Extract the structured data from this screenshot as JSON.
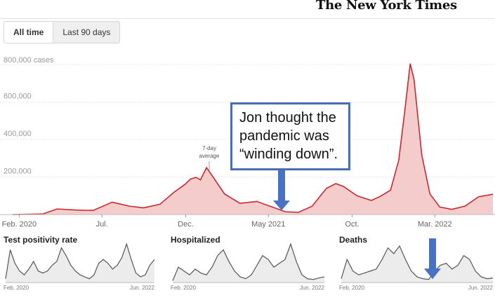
{
  "masthead": "The New York Times",
  "tabs": [
    {
      "label": "All time",
      "active": true
    },
    {
      "label": "Last 90 days",
      "active": false
    }
  ],
  "annotation": {
    "lines": [
      "Jon thought the",
      "pandemic was",
      "“winding down”."
    ],
    "color": "#4a6fb1"
  },
  "chart_data": [
    {
      "type": "area",
      "y_unit_label": "800,000 cases",
      "ylim": [
        0,
        800000
      ],
      "y_ticks": [
        200000,
        400000,
        600000
      ],
      "y_tick_labels": [
        "200,000",
        "400,000",
        "600,000"
      ],
      "x_ticks": [
        {
          "date": "2020-02-01",
          "label": "Feb. 2020"
        },
        {
          "date": "2020-07-01",
          "label": "Jul."
        },
        {
          "date": "2020-12-01",
          "label": "Dec."
        },
        {
          "date": "2021-05-01",
          "label": "May 2021"
        },
        {
          "date": "2021-10-01",
          "label": "Oct."
        },
        {
          "date": "2022-03-01",
          "label": "Mar. 2022"
        }
      ],
      "xlim": [
        "2020-01-20",
        "2022-06-15"
      ],
      "series_label": "7-day average",
      "line_color": "#c9282d",
      "fill_color": "#f4cccc",
      "points": [
        [
          "2020-01-20",
          0
        ],
        [
          "2020-03-15",
          3000
        ],
        [
          "2020-04-10",
          30000
        ],
        [
          "2020-05-15",
          24000
        ],
        [
          "2020-06-15",
          22000
        ],
        [
          "2020-07-20",
          66000
        ],
        [
          "2020-08-20",
          45000
        ],
        [
          "2020-09-15",
          36000
        ],
        [
          "2020-10-15",
          55000
        ],
        [
          "2020-11-10",
          120000
        ],
        [
          "2020-11-30",
          162000
        ],
        [
          "2020-12-10",
          190000
        ],
        [
          "2020-12-20",
          198000
        ],
        [
          "2020-12-28",
          185000
        ],
        [
          "2021-01-08",
          250000
        ],
        [
          "2021-01-20",
          200000
        ],
        [
          "2021-02-10",
          110000
        ],
        [
          "2021-03-10",
          60000
        ],
        [
          "2021-04-10",
          70000
        ],
        [
          "2021-05-10",
          38000
        ],
        [
          "2021-06-01",
          15000
        ],
        [
          "2021-06-25",
          12000
        ],
        [
          "2021-07-20",
          45000
        ],
        [
          "2021-08-15",
          140000
        ],
        [
          "2021-09-01",
          165000
        ],
        [
          "2021-09-15",
          150000
        ],
        [
          "2021-10-10",
          100000
        ],
        [
          "2021-11-05",
          75000
        ],
        [
          "2021-11-20",
          95000
        ],
        [
          "2021-12-10",
          130000
        ],
        [
          "2021-12-25",
          290000
        ],
        [
          "2022-01-05",
          550000
        ],
        [
          "2022-01-15",
          805000
        ],
        [
          "2022-01-22",
          720000
        ],
        [
          "2022-02-05",
          320000
        ],
        [
          "2022-02-20",
          110000
        ],
        [
          "2022-03-10",
          40000
        ],
        [
          "2022-04-01",
          28000
        ],
        [
          "2022-04-25",
          45000
        ],
        [
          "2022-05-20",
          95000
        ],
        [
          "2022-06-15",
          108000
        ]
      ]
    },
    {
      "type": "area",
      "title": "Test positivity rate",
      "x_tick_labels": [
        "Feb. 2020",
        "Jun. 2022"
      ],
      "line_color": "#555555",
      "fill_color": "#ececec",
      "values": [
        0.1,
        0.85,
        0.5,
        0.3,
        0.2,
        0.35,
        0.55,
        0.3,
        0.25,
        0.3,
        0.45,
        0.55,
        0.9,
        0.7,
        0.45,
        0.3,
        0.2,
        0.15,
        0.1,
        0.2,
        0.5,
        0.6,
        0.5,
        0.35,
        0.45,
        0.65,
        1.0,
        0.6,
        0.25,
        0.15,
        0.2,
        0.45,
        0.6
      ]
    },
    {
      "type": "area",
      "title": "Hospitalized",
      "x_tick_labels": [
        "Feb. 2020",
        "Jun. 2022"
      ],
      "line_color": "#555555",
      "fill_color": "#ececec",
      "values": [
        0.05,
        0.4,
        0.3,
        0.2,
        0.35,
        0.25,
        0.2,
        0.4,
        0.7,
        0.85,
        0.55,
        0.3,
        0.15,
        0.1,
        0.2,
        0.45,
        0.7,
        0.6,
        0.4,
        0.5,
        0.6,
        1.0,
        0.55,
        0.2,
        0.1,
        0.08,
        0.12,
        0.15
      ]
    },
    {
      "type": "area",
      "title": "Deaths",
      "x_tick_labels": [
        "Feb. 2020",
        "Jun. 2022"
      ],
      "line_color": "#555555",
      "fill_color": "#ececec",
      "values": [
        0.1,
        0.6,
        0.3,
        0.2,
        0.25,
        0.3,
        0.35,
        0.6,
        0.9,
        0.75,
        0.95,
        0.6,
        0.3,
        0.15,
        0.1,
        0.08,
        0.3,
        0.45,
        0.5,
        0.35,
        0.45,
        0.7,
        0.6,
        0.3,
        0.15,
        0.1,
        0.12
      ]
    }
  ]
}
